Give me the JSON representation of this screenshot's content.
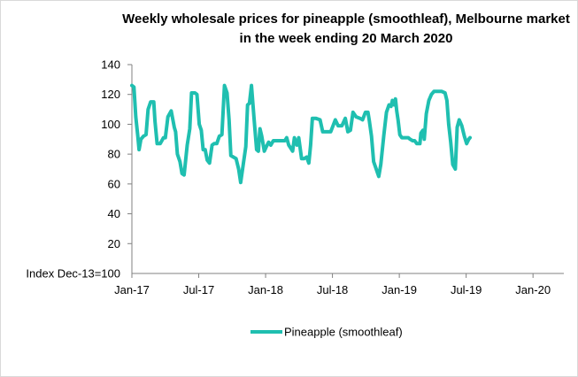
{
  "chart_data": {
    "type": "line",
    "title": "Weekly wholesale prices for pineapple (smoothleaf), Melbourne market in the week ending 20 March 2020",
    "ylabel": "Index Dec-13=100",
    "xlabel": "",
    "ylim": [
      0,
      140
    ],
    "yticks": [
      20,
      40,
      60,
      80,
      100,
      120,
      140
    ],
    "xticks": [
      {
        "label": "Jan-17",
        "t": 0
      },
      {
        "label": "Jul-17",
        "t": 26
      },
      {
        "label": "Jan-18",
        "t": 52
      },
      {
        "label": "Jul-18",
        "t": 78
      },
      {
        "label": "Jan-19",
        "t": 104
      },
      {
        "label": "Jul-19",
        "t": 130
      },
      {
        "label": "Jan-20",
        "t": 156
      }
    ],
    "x_range": [
      0,
      166
    ],
    "grid": false,
    "legend_position": "bottom",
    "series": [
      {
        "name": "Pineapple (smoothleaf)",
        "color": "#1fbfb0",
        "points": [
          [
            0,
            126
          ],
          [
            0.8,
            125
          ],
          [
            1.5,
            105
          ],
          [
            2.3,
            92
          ],
          [
            2.8,
            83
          ],
          [
            3.5,
            90
          ],
          [
            4.5,
            92
          ],
          [
            5.5,
            93
          ],
          [
            6.3,
            110
          ],
          [
            7.3,
            115
          ],
          [
            8.5,
            115
          ],
          [
            9,
            102
          ],
          [
            9.8,
            87
          ],
          [
            11,
            87
          ],
          [
            12.3,
            91
          ],
          [
            13,
            91
          ],
          [
            14,
            105
          ],
          [
            15.3,
            109
          ],
          [
            16.5,
            98
          ],
          [
            17,
            95
          ],
          [
            17.7,
            80
          ],
          [
            18.7,
            75
          ],
          [
            19.5,
            67
          ],
          [
            20.3,
            66
          ],
          [
            21.5,
            86
          ],
          [
            22.5,
            97
          ],
          [
            23.2,
            121
          ],
          [
            24.5,
            121
          ],
          [
            25.3,
            120
          ],
          [
            26.2,
            100
          ],
          [
            27,
            96
          ],
          [
            27.7,
            83
          ],
          [
            28.5,
            83
          ],
          [
            29.3,
            76
          ],
          [
            30.2,
            74
          ],
          [
            31.2,
            86
          ],
          [
            32,
            87
          ],
          [
            33,
            87
          ],
          [
            34,
            92
          ],
          [
            35,
            93
          ],
          [
            36,
            126
          ],
          [
            37,
            121
          ],
          [
            37.8,
            103
          ],
          [
            38.5,
            79
          ],
          [
            39.5,
            78
          ],
          [
            40.5,
            77
          ],
          [
            41.5,
            70
          ],
          [
            42.3,
            61
          ],
          [
            43.3,
            73
          ],
          [
            44.3,
            85
          ],
          [
            45,
            113
          ],
          [
            45.7,
            114
          ],
          [
            46.5,
            126
          ],
          [
            47.5,
            104
          ],
          [
            48.5,
            83
          ],
          [
            49.2,
            82
          ],
          [
            49.8,
            97
          ],
          [
            50.5,
            92
          ],
          [
            51.5,
            82
          ],
          [
            52.3,
            85
          ],
          [
            53.2,
            88
          ],
          [
            54,
            86
          ],
          [
            55,
            89
          ],
          [
            56,
            89
          ],
          [
            57.5,
            89
          ],
          [
            58.5,
            89
          ],
          [
            59.5,
            89
          ],
          [
            60.2,
            91
          ],
          [
            61,
            86
          ],
          [
            61.8,
            84
          ],
          [
            62.5,
            82
          ],
          [
            63.2,
            91
          ],
          [
            64.2,
            86
          ],
          [
            64.9,
            91
          ],
          [
            66,
            77
          ],
          [
            67,
            77
          ],
          [
            68,
            78
          ],
          [
            68.8,
            74
          ],
          [
            69.5,
            86
          ],
          [
            70.2,
            104
          ],
          [
            71.5,
            104
          ],
          [
            73.2,
            103
          ],
          [
            74.2,
            95
          ],
          [
            75.7,
            95
          ],
          [
            77.3,
            95
          ],
          [
            78,
            98
          ],
          [
            79.1,
            103
          ],
          [
            80.2,
            99
          ],
          [
            81.7,
            99
          ],
          [
            83,
            104
          ],
          [
            84,
            95
          ],
          [
            85,
            96
          ],
          [
            86,
            108
          ],
          [
            87.2,
            105
          ],
          [
            88.7,
            104
          ],
          [
            89.7,
            103
          ],
          [
            90.8,
            108
          ],
          [
            91.8,
            108
          ],
          [
            92.3,
            103
          ],
          [
            93.2,
            92
          ],
          [
            94,
            75
          ],
          [
            95.2,
            69
          ],
          [
            96,
            65
          ],
          [
            96.8,
            73
          ],
          [
            98,
            93
          ],
          [
            99,
            108
          ],
          [
            100,
            113
          ],
          [
            100.8,
            112
          ],
          [
            101.3,
            116
          ],
          [
            102,
            113
          ],
          [
            102.5,
            117
          ],
          [
            103,
            109
          ],
          [
            103.5,
            103
          ],
          [
            104.2,
            93
          ],
          [
            105,
            91
          ],
          [
            106.2,
            91
          ],
          [
            107.5,
            91
          ],
          [
            108.2,
            90
          ],
          [
            109.2,
            89
          ],
          [
            110,
            89
          ],
          [
            110.8,
            87
          ],
          [
            112,
            87
          ],
          [
            112.4,
            94
          ],
          [
            113.2,
            96
          ],
          [
            113.7,
            90
          ],
          [
            114.5,
            107
          ],
          [
            115.5,
            116
          ],
          [
            116.5,
            120
          ],
          [
            117.5,
            122
          ],
          [
            118.5,
            122
          ],
          [
            119.5,
            122
          ],
          [
            120.5,
            122
          ],
          [
            121.8,
            121
          ],
          [
            122.5,
            116
          ],
          [
            123.2,
            100
          ],
          [
            124,
            88
          ],
          [
            124.8,
            73
          ],
          [
            125.8,
            70
          ],
          [
            126.5,
            98
          ],
          [
            127.3,
            103
          ],
          [
            128.3,
            99
          ],
          [
            129.3,
            92
          ],
          [
            130.2,
            87
          ],
          [
            131,
            90
          ],
          [
            131.5,
            91
          ]
        ]
      }
    ]
  }
}
